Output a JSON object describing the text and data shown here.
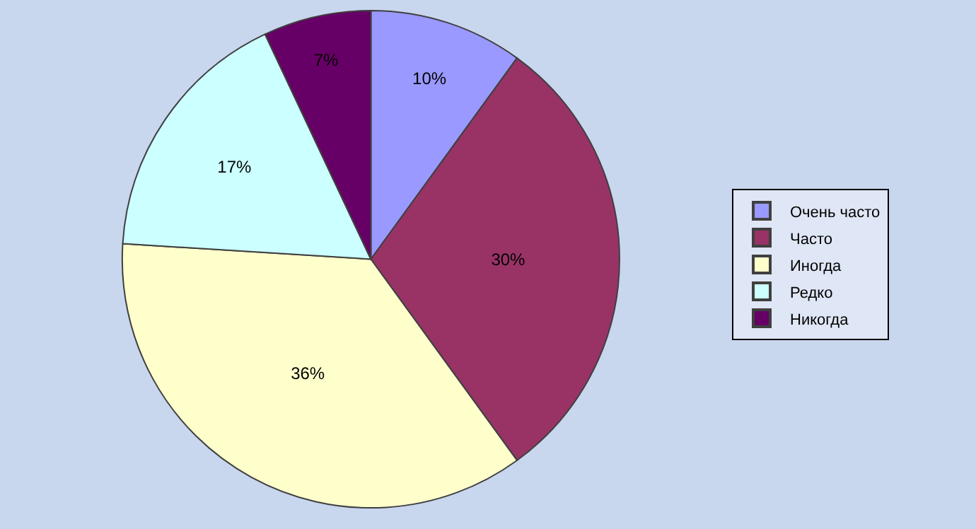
{
  "chart_data": {
    "type": "pie",
    "categories": [
      "Очень часто",
      "Часто",
      "Иногда",
      "Редко",
      "Никогда"
    ],
    "values": [
      10,
      30,
      36,
      17,
      7
    ],
    "value_labels": [
      "10%",
      "30%",
      "36%",
      "17%",
      "7%"
    ],
    "colors": [
      "#9999ff",
      "#993366",
      "#ffffcc",
      "#ccffff",
      "#660066"
    ],
    "legend": "right"
  }
}
